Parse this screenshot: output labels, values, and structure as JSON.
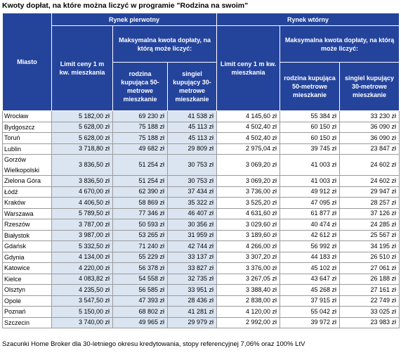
{
  "title": "Kwoty dopłat, na które można liczyć w programie \"Rodzina na swoim\"",
  "table": {
    "header": {
      "city": "Miasto",
      "primary": "Rynek pierwotny",
      "secondary": "Rynek wtórny",
      "max_primary": "Maksymalna kwota dopłaty, na którą może liczyć:",
      "max_secondary": "Maksymalna kwota dopłaty, na którą może liczyć:",
      "limit_primary": "Limit ceny 1 m kw. mieszkania",
      "limit_secondary": "Limit ceny 1 m kw. mieszkania",
      "family_primary": "rodzina kupująca 50-metrowe mieszkanie",
      "single_primary": "singiel kupujący 30-metrowe mieszkanie",
      "family_secondary": "rodzina kupująca 50-metrowe mieszkanie",
      "single_secondary": "singiel kupujący 30-metrowe mieszkanie"
    },
    "rows": [
      [
        "Wrocław",
        "5 182,00 zł",
        "69 230 zł",
        "41 538 zł",
        "4 145,60 zł",
        "55 384 zł",
        "33 230 zł"
      ],
      [
        "Bydgoszcz",
        "5 628,00 zł",
        "75 188 zł",
        "45 113 zł",
        "4 502,40 zł",
        "60 150 zł",
        "36 090 zł"
      ],
      [
        "Toruń",
        "5 628,00 zł",
        "75 188 zł",
        "45 113 zł",
        "4 502,40 zł",
        "60 150 zł",
        "36 090 zł"
      ],
      [
        "Lublin",
        "3 718,80 zł",
        "49 682 zł",
        "29 809 zł",
        "2 975,04 zł",
        "39 745 zł",
        "23 847 zł"
      ],
      [
        "Gorzów Wielkopolski",
        "3 836,50 zł",
        "51 254 zł",
        "30 753 zł",
        "3 069,20 zł",
        "41 003 zł",
        "24 602 zł"
      ],
      [
        "Zielona Góra",
        "3 836,50 zł",
        "51 254 zł",
        "30 753 zł",
        "3 069,20 zł",
        "41 003 zł",
        "24 602 zł"
      ],
      [
        "Łódź",
        "4 670,00 zł",
        "62 390 zł",
        "37 434 zł",
        "3 736,00 zł",
        "49 912 zł",
        "29 947 zł"
      ],
      [
        "Kraków",
        "4 406,50 zł",
        "58 869 zł",
        "35 322 zł",
        "3 525,20 zł",
        "47 095 zł",
        "28 257 zł"
      ],
      [
        "Warszawa",
        "5 789,50 zł",
        "77 346 zł",
        "46 407 zł",
        "4 631,60 zł",
        "61 877 zł",
        "37 126 zł"
      ],
      [
        "Rzeszów",
        "3 787,00 zł",
        "50 593 zł",
        "30 356 zł",
        "3 029,60 zł",
        "40 474 zł",
        "24 285 zł"
      ],
      [
        "Białystok",
        "3 987,00 zł",
        "53 265 zł",
        "31 959 zł",
        "3 189,60 zł",
        "42 612 zł",
        "25 567 zł"
      ],
      [
        "Gdańsk",
        "5 332,50 zł",
        "71 240 zł",
        "42 744 zł",
        "4 266,00 zł",
        "56 992 zł",
        "34 195 zł"
      ],
      [
        "Gdynia",
        "4 134,00 zł",
        "55 229 zł",
        "33 137 zł",
        "3 307,20 zł",
        "44 183 zł",
        "26 510 zł"
      ],
      [
        "Katowice",
        "4 220,00 zł",
        "56 378 zł",
        "33 827 zł",
        "3 376,00 zł",
        "45 102 zł",
        "27 061 zł"
      ],
      [
        "Kielce",
        "4 083,82 zł",
        "54 558 zł",
        "32 735 zł",
        "3 267,05 zł",
        "43 647 zł",
        "26 188 zł"
      ],
      [
        "Olsztyn",
        "4 235,50 zł",
        "56 585 zł",
        "33 951 zł",
        "3 388,40 zł",
        "45 268 zł",
        "27 161 zł"
      ],
      [
        "Opole",
        "3 547,50 zł",
        "47 393 zł",
        "28 436 zł",
        "2 838,00 zł",
        "37 915 zł",
        "22 749 zł"
      ],
      [
        "Poznań",
        "5 150,00 zł",
        "68 802 zł",
        "41 281 zł",
        "4 120,00 zł",
        "55 042 zł",
        "33 025 zł"
      ],
      [
        "Szczecin",
        "3 740,00 zł",
        "49 965 zł",
        "29 979 zł",
        "2 992,00 zł",
        "39 972 zł",
        "23 983 zł"
      ]
    ]
  },
  "footer": "Szacunki Home Broker dla 30-letniego okresu kredytowania, stopy referencyjnej 7,06% oraz 100% LtV"
}
